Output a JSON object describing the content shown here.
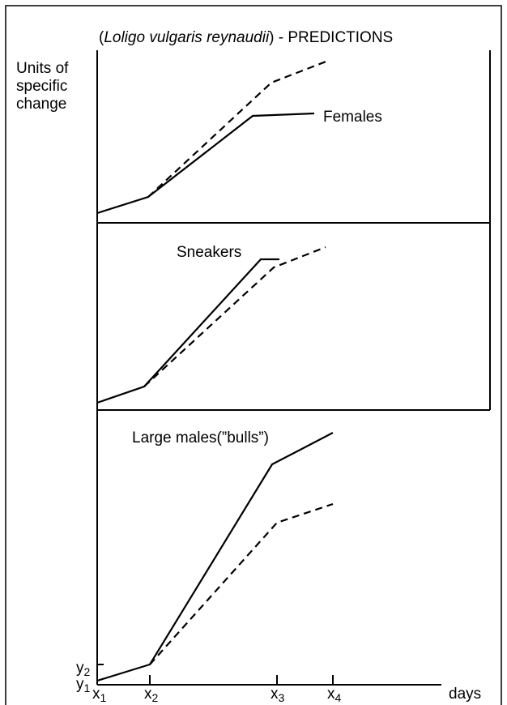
{
  "title": {
    "open": "(",
    "species": "Loligo vulgaris reynaudii",
    "rest": ") - PREDICTIONS"
  },
  "y_axis_label": [
    "Units of",
    "specific",
    "change"
  ],
  "panels": [
    {
      "label": "Females"
    },
    {
      "label": "Sneakers"
    },
    {
      "label": "Large males(”bulls”)"
    }
  ],
  "x_ticks": [
    {
      "letter": "x",
      "sub": "1"
    },
    {
      "letter": "x",
      "sub": "2"
    },
    {
      "letter": "x",
      "sub": "3"
    },
    {
      "letter": "x",
      "sub": "4"
    }
  ],
  "y_ticks": [
    {
      "letter": "y",
      "sub": "1"
    },
    {
      "letter": "y",
      "sub": "2"
    }
  ],
  "x_axis_label": "days"
}
